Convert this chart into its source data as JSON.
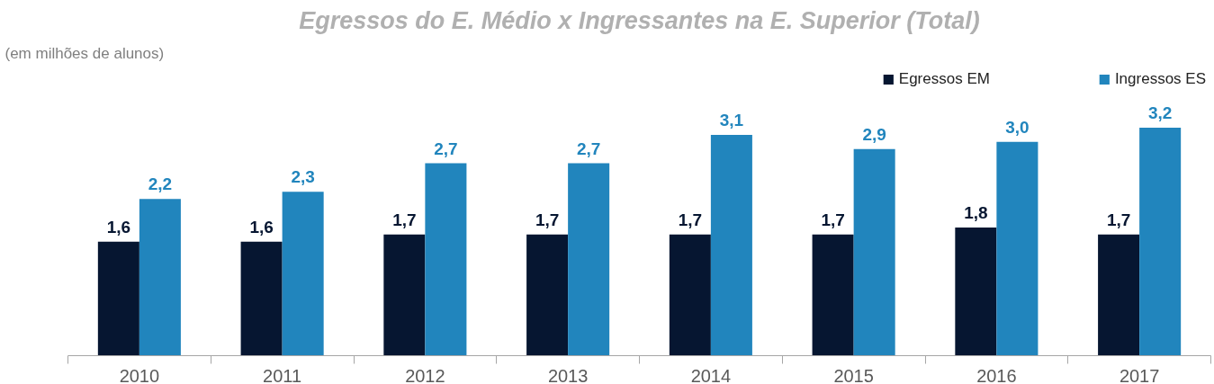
{
  "chart_data": {
    "type": "bar",
    "title": "Egressos do E. Médio x Ingressantes na E. Superior (Total)",
    "subtitle": "(em milhões de alunos)",
    "categories": [
      "2010",
      "2011",
      "2012",
      "2013",
      "2014",
      "2015",
      "2016",
      "2017"
    ],
    "series": [
      {
        "name": "Egressos EM",
        "color": "#061631",
        "values": [
          1.6,
          1.6,
          1.7,
          1.7,
          1.7,
          1.7,
          1.8,
          1.7
        ],
        "value_labels": [
          "1,6",
          "1,6",
          "1,7",
          "1,7",
          "1,7",
          "1,7",
          "1,8",
          "1,7"
        ]
      },
      {
        "name": "Ingressos ES",
        "color": "#2185bd",
        "values": [
          2.2,
          2.3,
          2.7,
          2.7,
          3.1,
          2.9,
          3.0,
          3.2
        ],
        "value_labels": [
          "2,2",
          "2,3",
          "2,7",
          "2,7",
          "3,1",
          "2,9",
          "3,0",
          "3,2"
        ]
      }
    ],
    "legend": "top right",
    "grid": false
  }
}
